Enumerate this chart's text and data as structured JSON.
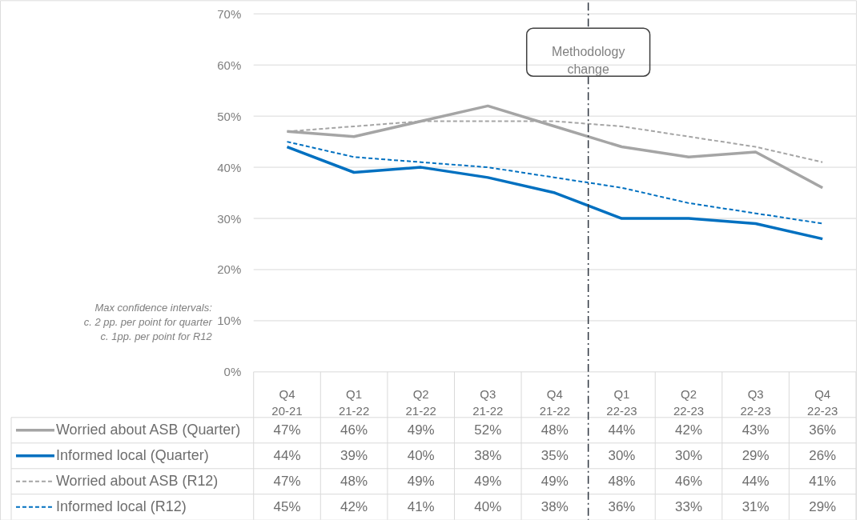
{
  "chart_data": {
    "type": "line",
    "categories": [
      "Q4 20-21",
      "Q1 21-22",
      "Q2 21-22",
      "Q3 21-22",
      "Q4 21-22",
      "Q1 22-23",
      "Q2 22-23",
      "Q3 22-23",
      "Q4 22-23"
    ],
    "series": [
      {
        "name": "Worried about ASB (Quarter)",
        "color": "#a5a5a5",
        "line_style": "solid",
        "values": [
          47,
          46,
          49,
          52,
          48,
          44,
          42,
          43,
          36
        ],
        "value_labels": [
          "47%",
          "46%",
          "49%",
          "52%",
          "48%",
          "44%",
          "42%",
          "43%",
          "36%"
        ]
      },
      {
        "name": "Informed local (Quarter)",
        "color": "#0070c0",
        "line_style": "solid",
        "values": [
          44,
          39,
          40,
          38,
          35,
          30,
          30,
          29,
          26
        ],
        "value_labels": [
          "44%",
          "39%",
          "40%",
          "38%",
          "35%",
          "30%",
          "30%",
          "29%",
          "26%"
        ]
      },
      {
        "name": "Worried about ASB (R12)",
        "color": "#a5a5a5",
        "line_style": "dashed",
        "values": [
          47,
          48,
          49,
          49,
          49,
          48,
          46,
          44,
          41
        ],
        "value_labels": [
          "47%",
          "48%",
          "49%",
          "49%",
          "49%",
          "48%",
          "46%",
          "44%",
          "41%"
        ]
      },
      {
        "name": "Informed local (R12)",
        "color": "#0070c0",
        "line_style": "dashed",
        "values": [
          45,
          42,
          41,
          40,
          38,
          36,
          33,
          31,
          29
        ],
        "value_labels": [
          "45%",
          "42%",
          "41%",
          "40%",
          "38%",
          "36%",
          "33%",
          "31%",
          "29%"
        ]
      }
    ],
    "ylim": [
      0,
      70
    ],
    "yticks": [
      {
        "value": 0,
        "label": "0%"
      },
      {
        "value": 10,
        "label": "10%"
      },
      {
        "value": 20,
        "label": "20%"
      },
      {
        "value": 30,
        "label": "30%"
      },
      {
        "value": 40,
        "label": "40%"
      },
      {
        "value": 50,
        "label": "50%"
      },
      {
        "value": 60,
        "label": "60%"
      },
      {
        "value": 70,
        "label": "70%"
      }
    ],
    "grid": "y",
    "legend": "bottom",
    "ref_lines": [
      {
        "axis": "x",
        "value": "Q1 22-23",
        "label": "Methodology change",
        "color": "#2f3640",
        "line_style": "dashdot"
      }
    ],
    "annotations": [
      "Max confidence intervals:\nc. 2 pp. per point for quarter\nc. 1pp. per point for R12"
    ]
  }
}
